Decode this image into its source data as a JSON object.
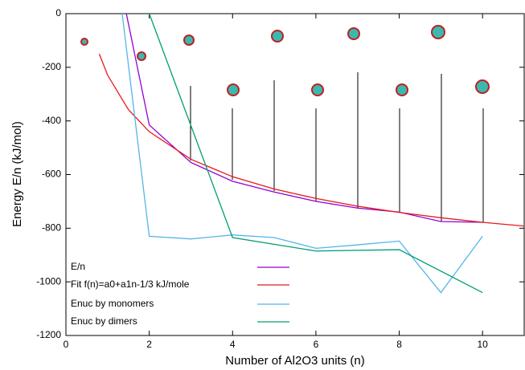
{
  "chart_data": {
    "type": "line",
    "x_label": "Number of Al2O3 units (n)",
    "y_label": "Energy E/n (kJ/mol)",
    "xlim": [
      0,
      11
    ],
    "ylim": [
      -1200,
      0
    ],
    "xticks": [
      0,
      2,
      4,
      6,
      8,
      10
    ],
    "yticks": [
      0,
      -200,
      -400,
      -600,
      -800,
      -1000,
      -1200
    ],
    "series": [
      {
        "name": "E/n",
        "color": "#9400d3",
        "x": [
          1,
          2,
          3,
          4,
          5,
          6,
          7,
          8,
          9,
          10
        ],
        "values": [
          340,
          -415,
          -555,
          -625,
          -665,
          -700,
          -725,
          -740,
          -775,
          -778
        ]
      },
      {
        "name": "Fit f(n)=a0+a1n-1/3 kJ/mole",
        "color": "#e41a1c",
        "x": [
          0.8,
          1,
          1.5,
          2,
          3,
          4,
          5,
          6,
          7,
          8,
          9,
          10,
          11
        ],
        "values": [
          -150,
          -229,
          -358,
          -440,
          -543,
          -608,
          -654,
          -689,
          -718,
          -741,
          -761,
          -778,
          -792
        ]
      },
      {
        "name": "Enuc by monomers",
        "color": "#56b4e9",
        "x": [
          1,
          2,
          3,
          4,
          5,
          6,
          7,
          8,
          9,
          10
        ],
        "values": [
          447,
          -830,
          -840,
          -825,
          -835,
          -875,
          -862,
          -848,
          -1040,
          -830
        ]
      },
      {
        "name": "Enuc by dimers",
        "color": "#009e73",
        "x": [
          2,
          4,
          6,
          8,
          10
        ],
        "values": [
          0,
          -835,
          -885,
          -880,
          -1040
        ]
      }
    ]
  }
}
